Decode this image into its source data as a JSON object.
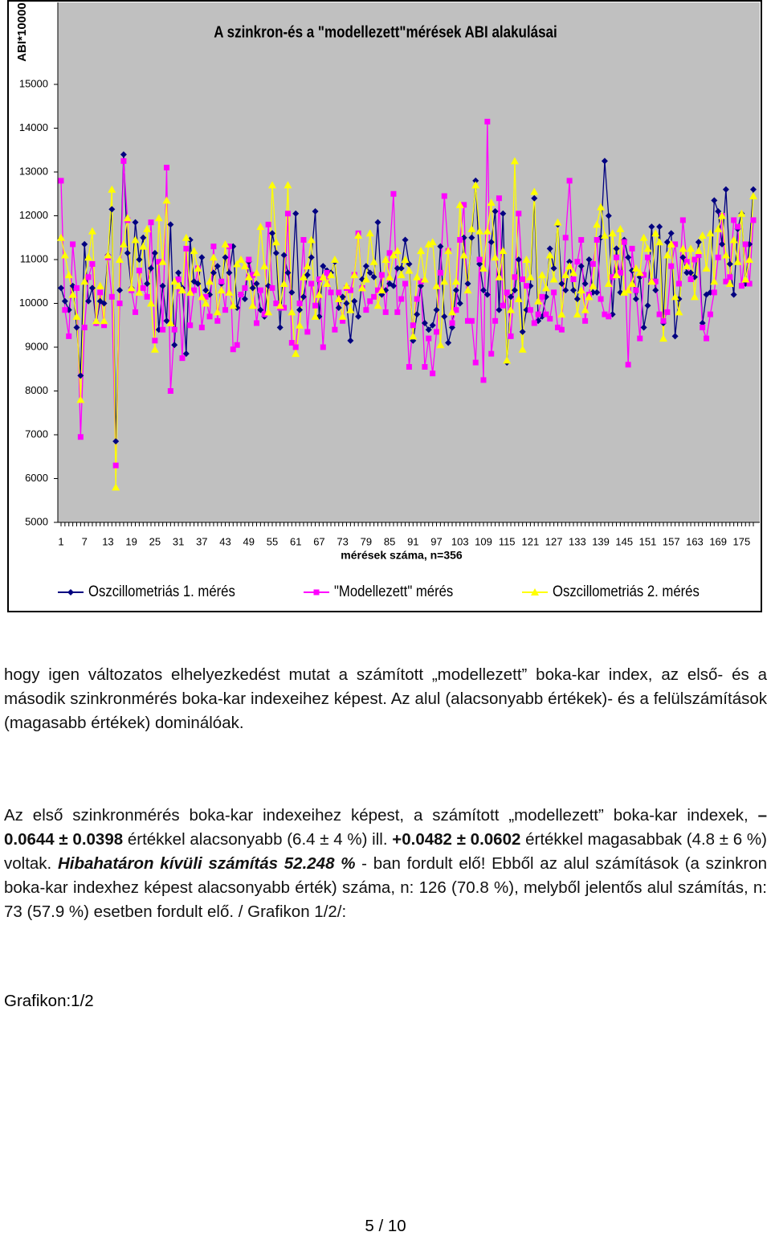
{
  "chart_data": {
    "type": "line",
    "title": "A szinkron-és a \"modellezett\"mérések ABI alakulásai",
    "y_label": "ABI*10000",
    "x_label": "mérések száma, n=356",
    "categories": [
      "1",
      null,
      null,
      null,
      null,
      null,
      "7",
      null,
      null,
      null,
      null,
      null,
      "13",
      null,
      null,
      null,
      null,
      null,
      "19",
      null,
      null,
      null,
      null,
      null,
      "25",
      null,
      null,
      null,
      null,
      null,
      "31",
      null,
      null,
      null,
      null,
      null,
      "37",
      null,
      null,
      null,
      null,
      null,
      "43",
      null,
      null,
      null,
      null,
      null,
      "49",
      null,
      null,
      null,
      null,
      null,
      "55",
      null,
      null,
      null,
      null,
      null,
      "61",
      null,
      null,
      null,
      null,
      null,
      "67",
      null,
      null,
      null,
      null,
      null,
      "73",
      null,
      null,
      null,
      null,
      null,
      "79",
      null,
      null,
      null,
      null,
      null,
      "85",
      null,
      null,
      null,
      null,
      null,
      "91",
      null,
      null,
      null,
      null,
      null,
      "97",
      null,
      null,
      null,
      null,
      null,
      "103",
      null,
      null,
      null,
      null,
      null,
      "109",
      null,
      null,
      null,
      null,
      null,
      "115",
      null,
      null,
      null,
      null,
      null,
      "121",
      null,
      null,
      null,
      null,
      null,
      "127",
      null,
      null,
      null,
      null,
      null,
      "133",
      null,
      null,
      null,
      null,
      null,
      "139",
      null,
      null,
      null,
      null,
      null,
      "145",
      null,
      null,
      null,
      null,
      null,
      "151",
      null,
      null,
      null,
      null,
      null,
      "157",
      null,
      null,
      null,
      null,
      null,
      "163",
      null,
      null,
      null,
      null,
      null,
      "169",
      null,
      null,
      null,
      null,
      null,
      "175",
      null,
      null,
      null
    ],
    "series": [
      {
        "name": "Oszcillometriás 1. mérés",
        "color": "#000080",
        "marker": "diamond",
        "values": [
          10350,
          10050,
          9850,
          10400,
          9450,
          8350,
          11350,
          10050,
          10350,
          9550,
          10050,
          10000,
          11100,
          12150,
          6850,
          10300,
          13400,
          11150,
          10350,
          11850,
          11000,
          11500,
          10450,
          10800,
          11150,
          9400,
          10400,
          9600,
          11800,
          9050,
          10700,
          10350,
          8850,
          11450,
          10500,
          10450,
          11050,
          10300,
          10200,
          10700,
          10850,
          10450,
          11050,
          10700,
          11300,
          9900,
          10200,
          10100,
          10950,
          10350,
          10450,
          9850,
          9700,
          10400,
          11600,
          11150,
          9450,
          11100,
          10700,
          10250,
          12050,
          9850,
          10150,
          10650,
          11050,
          12100,
          9700,
          10850,
          10750,
          10700,
          10950,
          9900,
          10150,
          10000,
          9150,
          10050,
          9700,
          10550,
          10850,
          10700,
          10600,
          11850,
          10200,
          10300,
          10450,
          10400,
          10800,
          10800,
          11450,
          10900,
          9150,
          9750,
          10400,
          9550,
          9400,
          9500,
          9850,
          11300,
          9700,
          9100,
          9450,
          10300,
          10000,
          11500,
          10450,
          11500,
          12800,
          10900,
          10300,
          10200,
          11400,
          12100,
          9850,
          12050,
          8650,
          10150,
          10300,
          11000,
          9350,
          9850,
          10400,
          12400,
          9600,
          9700,
          10150,
          11250,
          10800,
          11800,
          10450,
          10300,
          10950,
          10300,
          10100,
          10850,
          10450,
          11000,
          10250,
          10250,
          11500,
          13250,
          12000,
          9750,
          11250,
          10250,
          11450,
          11050,
          10750,
          10100,
          10600,
          9450,
          9950,
          11750,
          10300,
          11750,
          9550,
          11400,
          11600,
          9250,
          10100,
          11050,
          10700,
          10700,
          10600,
          11400,
          9550,
          10200,
          10250,
          12350,
          12100,
          11350,
          12600,
          10900,
          10200,
          11700,
          12050,
          10450,
          11350,
          12600
        ]
      },
      {
        "name": "\"Modellezett\" mérés",
        "color": "#ff00ff",
        "marker": "square",
        "values": [
          12800,
          9850,
          9250,
          11350,
          10350,
          6950,
          9450,
          10600,
          10900,
          9550,
          10250,
          9500,
          11050,
          10150,
          6300,
          10000,
          13250,
          11900,
          10300,
          9800,
          10750,
          10350,
          10150,
          11850,
          9150,
          10950,
          9400,
          13100,
          8000,
          9400,
          10550,
          8750,
          11250,
          9500,
          10300,
          10800,
          9450,
          10150,
          9700,
          11300,
          9600,
          10500,
          9850,
          11300,
          8950,
          9050,
          10200,
          10350,
          11000,
          10650,
          9550,
          10300,
          9750,
          11800,
          10350,
          10000,
          9900,
          9900,
          12050,
          9100,
          9000,
          10000,
          11450,
          9350,
          10450,
          9950,
          10550,
          9000,
          10700,
          10250,
          9400,
          10250,
          9600,
          10350,
          10300,
          10650,
          11600,
          10350,
          9850,
          10050,
          10150,
          10300,
          10650,
          9800,
          11150,
          12500,
          9800,
          10100,
          10450,
          8550,
          9500,
          10100,
          10500,
          8550,
          9200,
          8400,
          9350,
          10700,
          12450,
          11200,
          9550,
          9850,
          11450,
          12250,
          9600,
          9600,
          8650,
          11000,
          8250,
          14150,
          8850,
          9600,
          12400,
          9950,
          10250,
          9250,
          10600,
          12050,
          10550,
          10400,
          9850,
          9550,
          9750,
          10150,
          9750,
          9650,
          10250,
          9450,
          9400,
          11500,
          12800,
          10550,
          10950,
          11450,
          9600,
          10200,
          10900,
          11450,
          10100,
          9750,
          9700,
          10600,
          11050,
          10700,
          11400,
          8600,
          11250,
          10300,
          9200,
          10650,
          11050,
          10500,
          10500,
          9750,
          9600,
          9800,
          10850,
          11350,
          10450,
          11900,
          10950,
          10550,
          11000,
          11100,
          9450,
          9200,
          9750,
          10250,
          11050,
          12000,
          10500,
          10600,
          11900,
          11750,
          10400,
          11350,
          10450,
          11900
        ]
      },
      {
        "name": "Oszcillometriás 2. mérés",
        "color": "#ffff00",
        "marker": "triangle",
        "values": [
          11500,
          11100,
          10650,
          10200,
          9700,
          7800,
          10500,
          11050,
          11650,
          9600,
          10400,
          9600,
          11100,
          12600,
          5800,
          11000,
          11350,
          11950,
          10350,
          11450,
          10250,
          11300,
          11700,
          10000,
          8950,
          11950,
          10950,
          12350,
          9550,
          10500,
          10400,
          10300,
          11500,
          10250,
          11200,
          10800,
          10150,
          10000,
          10500,
          11050,
          9800,
          10300,
          11350,
          10250,
          9950,
          10900,
          11000,
          10850,
          10600,
          9950,
          10700,
          11750,
          10850,
          9800,
          12700,
          11400,
          9950,
          10450,
          12700,
          9800,
          8850,
          9500,
          10600,
          10850,
          11450,
          9700,
          10200,
          10600,
          10450,
          10650,
          11000,
          10100,
          9700,
          10400,
          9850,
          10650,
          11550,
          10350,
          10550,
          11600,
          10950,
          9950,
          10300,
          11000,
          10600,
          11100,
          11200,
          10650,
          11000,
          10750,
          9250,
          10600,
          11200,
          10550,
          11350,
          11400,
          10400,
          9050,
          10500,
          11200,
          9800,
          10500,
          12250,
          11100,
          10300,
          11700,
          12700,
          11650,
          10800,
          11650,
          12300,
          11050,
          10600,
          11200,
          8700,
          9850,
          13250,
          10100,
          8950,
          11000,
          10600,
          12550,
          10050,
          10650,
          10350,
          11100,
          10550,
          11850,
          9750,
          10650,
          10850,
          10700,
          9750,
          10300,
          9850,
          10150,
          10400,
          11800,
          12200,
          11550,
          10450,
          11600,
          10650,
          11700,
          10250,
          10300,
          10450,
          10800,
          10700,
          11500,
          11250,
          10500,
          11600,
          11400,
          9200,
          11100,
          11350,
          10150,
          9800,
          11250,
          10850,
          11250,
          10150,
          11200,
          11550,
          10800,
          11600,
          10500,
          11700,
          12000,
          11100,
          10450,
          11450,
          10950,
          12050,
          10550,
          11000,
          12450
        ]
      }
    ],
    "ylim": [
      5000,
      15000
    ],
    "yticks": [
      5000,
      6000,
      7000,
      8000,
      9000,
      10000,
      11000,
      12000,
      13000,
      14000,
      15000
    ],
    "grid": false,
    "legend": "bottom"
  },
  "document": {
    "paragraph1": "hogy igen változatos elhelyezkedést mutat a számított „modellezett” boka-kar index, az első- és a második szinkronmérés boka-kar indexeihez képest. Az alul (alacsonyabb értékek)- és a felülszámítások (magasabb értékek) dominálóak.",
    "paragraph2": [
      {
        "text": "Az első szinkronmérés boka-kar indexeihez képest, a számított „modellezett” boka-kar indexek, ",
        "bold": false,
        "italic": false
      },
      {
        "text": "– 0.0644 ± 0.0398",
        "bold": true,
        "italic": false
      },
      {
        "text": " értékkel alacsonyabb (6.4 ± 4 %) ill. ",
        "bold": false,
        "italic": false
      },
      {
        "text": "+0.0482 ± 0.0602",
        "bold": true,
        "italic": false
      },
      {
        "text": " értékkel magasabbak (4.8 ± 6 %) voltak. ",
        "bold": false,
        "italic": false
      },
      {
        "text": "Hibahatáron kívüli számítás 52.248 %",
        "bold": true,
        "italic": true
      },
      {
        "text": " - ban fordult elő! Ebből az alul számítások (a szinkron boka-kar indexhez képest alacsonyabb érték) száma, n: 126 (70.8 %), melyből jelentős alul számítás, n: 73 (57.9 %) esetben fordult elő. / Grafikon 1/2/:",
        "bold": false,
        "italic": false
      }
    ],
    "caption": "Grafikon:1/2",
    "page_number": "5 / 10"
  }
}
